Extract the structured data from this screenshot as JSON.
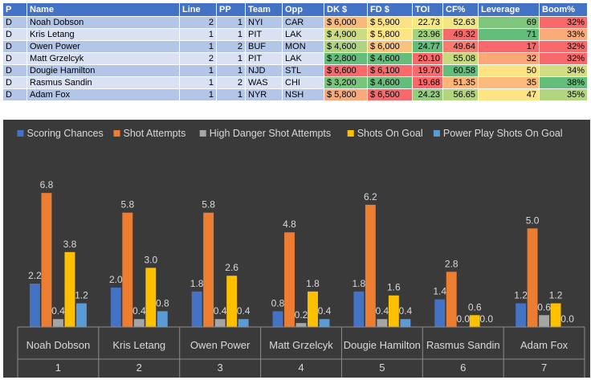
{
  "table": {
    "headers": [
      "P",
      "Name",
      "Line",
      "PP",
      "Team",
      "Opp",
      "DK $",
      "FD $",
      "TOI",
      "CF%",
      "Leverage",
      "Boom%"
    ],
    "rows": [
      {
        "pos": "D",
        "name": "Noah Dobson",
        "line": "2",
        "pp": "1",
        "team": "NYI",
        "opp": "CAR",
        "dk": "$ 6,000",
        "fd": "$ 5,900",
        "toi": "22.73",
        "cf": "52.63",
        "leverage": "69",
        "boom": "32%",
        "dk_color": "#f8b97a",
        "fd_color": "#fbe183",
        "toi_color": "#f5e883",
        "cf_color": "#f0e683",
        "lev_color": "#7dc67b",
        "boom_color": "#f8696b"
      },
      {
        "pos": "D",
        "name": "Kris Letang",
        "line": "1",
        "pp": "1",
        "team": "PIT",
        "opp": "LAK",
        "dk": "$ 4,900",
        "fd": "$ 5,800",
        "toi": "23.96",
        "cf": "49.32",
        "leverage": "71",
        "boom": "33%",
        "dk_color": "#cbdc81",
        "fd_color": "#fee583",
        "toi_color": "#a3d27f",
        "cf_color": "#f8696b",
        "lev_color": "#63be7b",
        "boom_color": "#fbab78"
      },
      {
        "pos": "D",
        "name": "Owen Power",
        "line": "1",
        "pp": "2",
        "team": "BUF",
        "opp": "MON",
        "dk": "$ 4,600",
        "fd": "$ 6,000",
        "toi": "24.77",
        "cf": "49.64",
        "leverage": "17",
        "boom": "32%",
        "dk_color": "#afd47f",
        "fd_color": "#f9c37c",
        "toi_color": "#63be7b",
        "cf_color": "#f97a6f",
        "lev_color": "#f8696b",
        "boom_color": "#f8696b"
      },
      {
        "pos": "D",
        "name": "Matt Grzelcyk",
        "line": "2",
        "pp": "1",
        "team": "PIT",
        "opp": "LAK",
        "dk": "$ 2,800",
        "fd": "$ 4,600",
        "toi": "20.10",
        "cf": "55.08",
        "leverage": "32",
        "boom": "32%",
        "dk_color": "#63be7b",
        "fd_color": "#63be7b",
        "toi_color": "#f8696b",
        "cf_color": "#c8da80",
        "lev_color": "#fba777",
        "boom_color": "#f8696b"
      },
      {
        "pos": "D",
        "name": "Dougie Hamilton",
        "line": "1",
        "pp": "1",
        "team": "NJD",
        "opp": "STL",
        "dk": "$ 6,600",
        "fd": "$ 6,100",
        "toi": "19.70",
        "cf": "60.58",
        "leverage": "50",
        "boom": "34%",
        "dk_color": "#f8696b",
        "fd_color": "#f8696b",
        "toi_color": "#f8696b",
        "cf_color": "#63be7b",
        "lev_color": "#fde382",
        "boom_color": "#d4dd81"
      },
      {
        "pos": "D",
        "name": "Rasmus Sandin",
        "line": "1",
        "pp": "2",
        "team": "WAS",
        "opp": "CHI",
        "dk": "$ 3,200",
        "fd": "$ 4,600",
        "toi": "19.68",
        "cf": "51.35",
        "leverage": "35",
        "boom": "38%",
        "dk_color": "#7ac57c",
        "fd_color": "#63be7b",
        "toi_color": "#f8696b",
        "cf_color": "#fcb479",
        "lev_color": "#fcbb7a",
        "boom_color": "#63be7b"
      },
      {
        "pos": "D",
        "name": "Adam Fox",
        "line": "1",
        "pp": "1",
        "team": "NYR",
        "opp": "NSH",
        "dk": "$ 5,800",
        "fd": "$ 6,500",
        "toi": "24.23",
        "cf": "56.65",
        "leverage": "47",
        "boom": "35%",
        "dk_color": "#f9a97a",
        "fd_color": "#f8696b",
        "toi_color": "#94cd7e",
        "cf_color": "#b3d57f",
        "lev_color": "#fee583",
        "boom_color": "#b2d57f"
      }
    ]
  },
  "chart_data": {
    "type": "bar",
    "title": "",
    "xlabel": "",
    "ylabel": "",
    "ylim": [
      0,
      7.5
    ],
    "grid": false,
    "legend_position": "top",
    "categories": [
      "Noah Dobson",
      "Kris Letang",
      "Owen Power",
      "Matt Grzelcyk",
      "Dougie Hamilton",
      "Rasmus Sandin",
      "Adam Fox"
    ],
    "category_numbers": [
      "1",
      "2",
      "3",
      "4",
      "5",
      "6",
      "7"
    ],
    "series": [
      {
        "name": "Scoring Chances",
        "color": "#4472c4",
        "values": [
          2.2,
          2.0,
          1.8,
          0.8,
          1.8,
          1.4,
          1.2
        ]
      },
      {
        "name": "Shot Attempts",
        "color": "#ed7d31",
        "values": [
          6.8,
          5.8,
          5.8,
          4.8,
          6.2,
          2.8,
          5.0
        ]
      },
      {
        "name": "High Danger Shot Attempts",
        "color": "#a5a5a5",
        "values": [
          0.4,
          0.4,
          0.4,
          0.2,
          0.4,
          0.0,
          0.6
        ]
      },
      {
        "name": "Shots On Goal",
        "color": "#ffc000",
        "values": [
          3.8,
          3.0,
          2.6,
          1.8,
          1.6,
          0.6,
          1.2
        ]
      },
      {
        "name": "Power Play Shots On Goal",
        "color": "#5b9bd5",
        "values": [
          1.2,
          0.8,
          0.4,
          0.4,
          0.4,
          0.0,
          0.0
        ]
      }
    ]
  }
}
